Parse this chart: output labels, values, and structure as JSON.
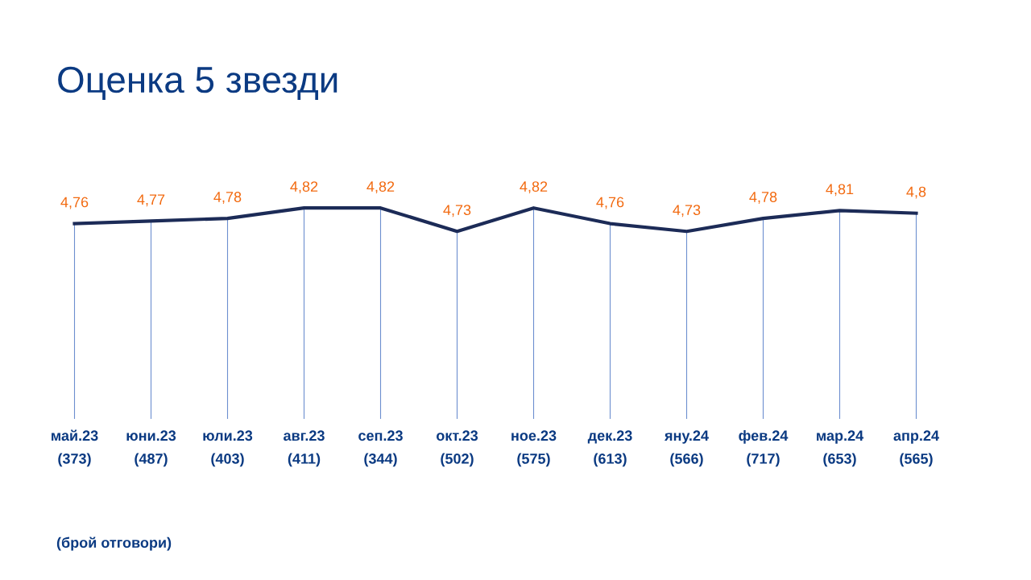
{
  "chart_data": {
    "type": "line",
    "title": "Оценка 5 звезди",
    "categories": [
      "май.23\n(373)",
      "юни.23\n(487)",
      "юли.23\n(403)",
      "авг.23\n(411)",
      "сеп.23\n(344)",
      "окт.23\n(502)",
      "ное.23\n(575)",
      "дек.23\n(613)",
      "яну.24\n(566)",
      "фев.24\n(717)",
      "мар.24\n(653)",
      "апр.24\n(565)"
    ],
    "series": [
      {
        "color": "#1c2b57",
        "values": [
          4.76,
          4.77,
          4.78,
          4.82,
          4.82,
          4.73,
          4.82,
          4.76,
          4.73,
          4.78,
          4.81,
          4.8
        ],
        "value_labels": [
          "4,76",
          "4,77",
          "4,78",
          "4,82",
          "4,82",
          "4,73",
          "4,82",
          "4,76",
          "4,73",
          "4,78",
          "4,81",
          "4,8"
        ]
      }
    ],
    "tick_labels": "x",
    "grid": "x",
    "marker": "none",
    "line_style": "solid",
    "annotations": [
      "(брой отговори)"
    ]
  }
}
